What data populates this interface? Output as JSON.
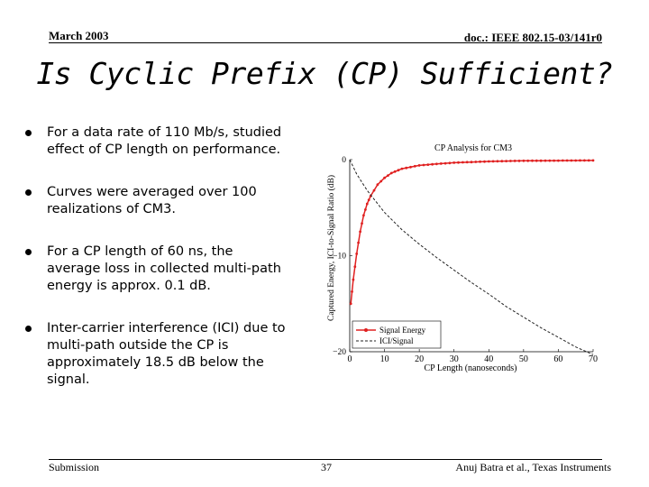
{
  "header": {
    "date": "March 2003",
    "doc_id": "doc.: IEEE 802.15-03/141r0"
  },
  "title": "Is Cyclic Prefix (CP) Sufficient?",
  "bullets": [
    {
      "text": "For a data rate of 110 Mb/s, studied effect of CP length on performance."
    },
    {
      "text": "Curves were averaged over 100 realizations of CM3."
    },
    {
      "text": "For a CP length of 60 ns, the average loss in collected multi-path energy is approx. 0.1 dB."
    },
    {
      "text": "Inter-carrier interference (ICI) due to multi-path outside the CP is approximately 18.5 dB below the signal."
    }
  ],
  "chart_data": {
    "type": "line",
    "title": "CP Analysis for CM3",
    "xlabel": "CP Length (nanoseconds)",
    "ylabel": "Captured Energy, ICI-to-Signal Ratio (dB)",
    "xlim": [
      0,
      70
    ],
    "ylim": [
      -20,
      0
    ],
    "xticks": [
      0,
      10,
      20,
      30,
      40,
      50,
      60,
      70
    ],
    "yticks": [
      0,
      -10,
      -20
    ],
    "ytick_labels": [
      "0",
      "−10",
      "−20"
    ],
    "legend_position": "bottom-left",
    "series": [
      {
        "name": "Signal Energy",
        "color": "#e02020",
        "style": "solid-dots",
        "x": [
          0.3,
          1,
          2,
          3,
          4,
          5,
          6,
          8,
          10,
          12,
          15,
          20,
          25,
          30,
          35,
          40,
          45,
          50,
          55,
          60,
          65,
          70
        ],
        "y": [
          -15,
          -12.5,
          -9.8,
          -7.5,
          -5.8,
          -4.6,
          -3.8,
          -2.6,
          -1.9,
          -1.4,
          -0.95,
          -0.6,
          -0.45,
          -0.32,
          -0.25,
          -0.19,
          -0.15,
          -0.12,
          -0.11,
          -0.1,
          -0.09,
          -0.08
        ]
      },
      {
        "name": "ICI/Signal",
        "color": "#222222",
        "style": "dashed",
        "x": [
          0,
          2,
          5,
          10,
          15,
          20,
          25,
          30,
          35,
          40,
          45,
          50,
          55,
          60,
          65,
          70
        ],
        "y": [
          0,
          -1.5,
          -3.2,
          -5.5,
          -7.3,
          -8.8,
          -10.2,
          -11.5,
          -12.8,
          -14.0,
          -15.3,
          -16.4,
          -17.5,
          -18.5,
          -19.5,
          -20.3
        ]
      }
    ]
  },
  "footer": {
    "left": "Submission",
    "page": "37",
    "right": "Anuj Batra et al., Texas Instruments"
  }
}
